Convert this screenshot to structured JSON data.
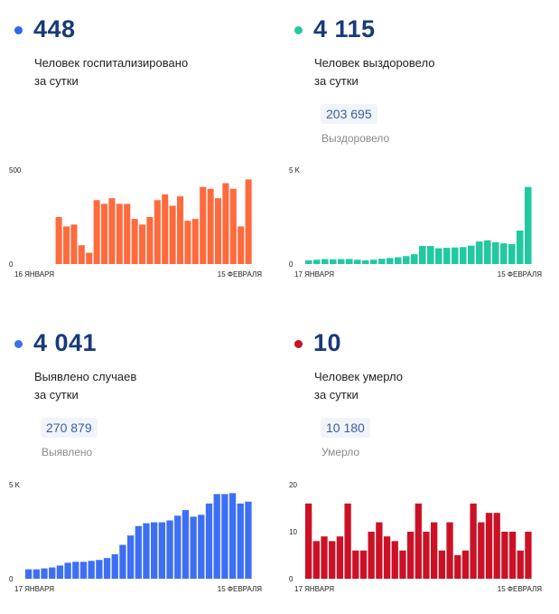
{
  "panels": [
    {
      "id": "hospitalized",
      "value": "448",
      "desc_line1": "Человек госпитализировано",
      "desc_line2": "за сутки",
      "total": "",
      "total_label": "",
      "color": "#ff6a3d",
      "dot_color": "#3366ee"
    },
    {
      "id": "recovered",
      "value": "4 115",
      "desc_line1": "Человек выздоровело",
      "desc_line2": "за сутки",
      "total": "203 695",
      "total_label": "Выздоровело",
      "color": "#22c9a0",
      "dot_color": "#22c9a0"
    },
    {
      "id": "cases",
      "value": "4 041",
      "desc_line1": "Выявлено случаев",
      "desc_line2": "за сутки",
      "total": "270 879",
      "total_label": "Выявлено",
      "color": "#3d6ff5",
      "dot_color": "#3d6ff5"
    },
    {
      "id": "deaths",
      "value": "10",
      "desc_line1": "Человек умерло",
      "desc_line2": "за сутки",
      "total": "10 180",
      "total_label": "Умерло",
      "color": "#cc1127",
      "dot_color": "#cc1127"
    }
  ],
  "chart_data": [
    {
      "type": "bar",
      "series": [
        {
          "values": [
            null,
            null,
            null,
            null,
            250,
            200,
            210,
            100,
            60,
            340,
            320,
            350,
            320,
            320,
            240,
            210,
            250,
            340,
            370,
            310,
            360,
            230,
            240,
            410,
            400,
            350,
            430,
            400,
            200,
            450
          ]
        }
      ],
      "ylim": [
        0,
        500
      ],
      "ytick_labels": [
        "0",
        "500"
      ],
      "yticks": [
        0,
        500
      ],
      "x_start_label": "16 ЯНВАРЯ",
      "x_end_label": "15 ФЕВРАЛЯ",
      "color": "#ff6a3d"
    },
    {
      "type": "bar",
      "series": [
        {
          "values": [
            200,
            230,
            260,
            250,
            260,
            270,
            230,
            200,
            230,
            280,
            320,
            360,
            420,
            520,
            960,
            960,
            840,
            860,
            880,
            900,
            980,
            1200,
            1260,
            1160,
            1100,
            1060,
            1780,
            4100
          ]
        }
      ],
      "ylim": [
        0,
        5000
      ],
      "ytick_labels": [
        "0",
        "5 K"
      ],
      "yticks": [
        0,
        5000
      ],
      "x_start_label": "17 ЯНВАРЯ",
      "x_end_label": "15 ФЕВРАЛЯ",
      "color": "#22c9a0"
    },
    {
      "type": "bar",
      "series": [
        {
          "values": [
            500,
            500,
            550,
            600,
            700,
            850,
            900,
            900,
            950,
            1000,
            1100,
            1300,
            1800,
            2300,
            2800,
            2950,
            3000,
            3000,
            3100,
            3350,
            3650,
            3300,
            3400,
            4000,
            4500,
            4500,
            4550,
            4000,
            4100
          ]
        }
      ],
      "ylim": [
        0,
        5000
      ],
      "ytick_labels": [
        "0",
        "5 K"
      ],
      "yticks": [
        0,
        5000
      ],
      "x_start_label": "17 ЯНВАРЯ",
      "x_end_label": "15 ФЕВРАЛЯ",
      "color": "#3d6ff5"
    },
    {
      "type": "bar",
      "series": [
        {
          "values": [
            16,
            8,
            9,
            8,
            9,
            16,
            6,
            6,
            10,
            12,
            9,
            8,
            6,
            10,
            16,
            10,
            12,
            6,
            12,
            5,
            6,
            16,
            12,
            14,
            14,
            10,
            10,
            6,
            10
          ]
        }
      ],
      "ylim": [
        0,
        20
      ],
      "ytick_labels": [
        "0",
        "10",
        "20"
      ],
      "yticks": [
        0,
        10,
        20
      ],
      "x_start_label": "17 ЯНВАРЯ",
      "x_end_label": "15 ФЕВРАЛЯ",
      "color": "#cc1127"
    }
  ]
}
